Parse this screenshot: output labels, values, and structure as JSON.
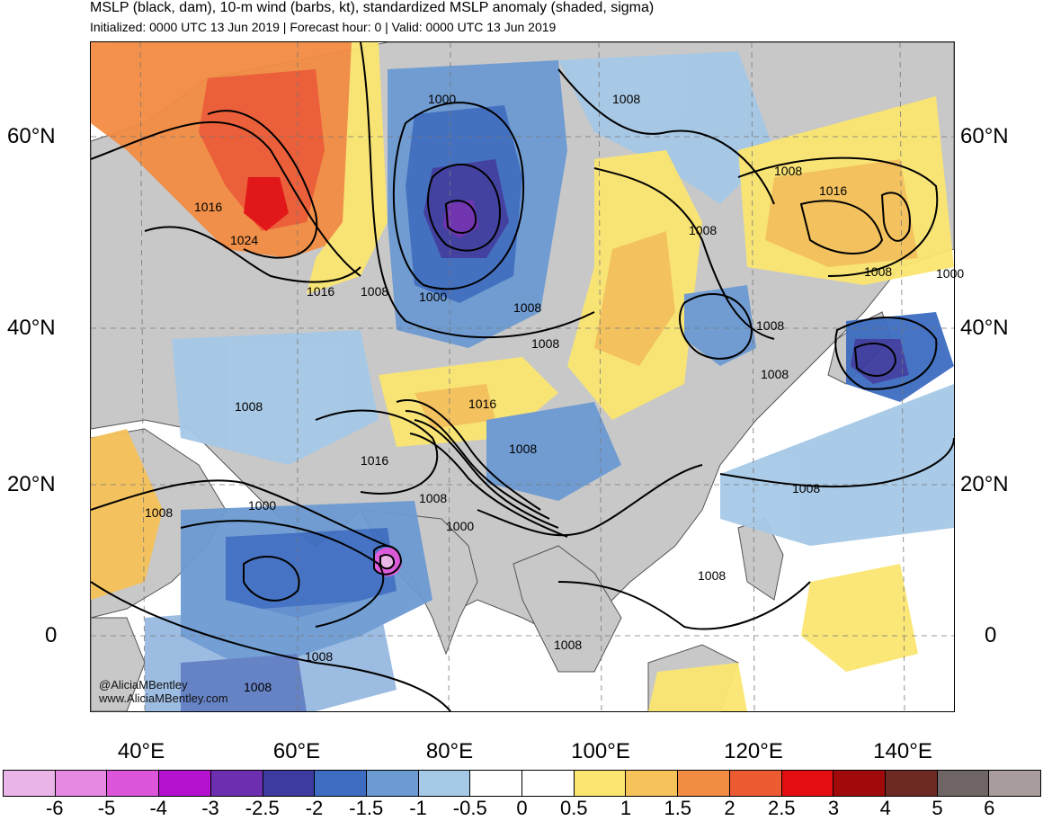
{
  "header": {
    "title": "MSLP (black, dam), 10-m wind (barbs, kt), standardized MSLP anomaly (shaded, sigma)",
    "subtitle": "Initialized: 0000 UTC 13 Jun 2019 | Forecast hour: 0 | Valid: 0000 UTC 13 Jun 2019"
  },
  "axes": {
    "lat_labels": [
      "60°N",
      "40°N",
      "20°N",
      "0"
    ],
    "lon_labels": [
      "40°E",
      "60°E",
      "80°E",
      "100°E",
      "120°E",
      "140°E"
    ]
  },
  "credit": {
    "handle": "@AliciaMBentley",
    "website": "www.AliciaMBentley.com"
  },
  "isobar_labels": [
    "1000",
    "1008",
    "1008",
    "1016",
    "1016",
    "1024",
    "1016",
    "1008",
    "1000",
    "1008",
    "1008",
    "1008",
    "1008",
    "1016",
    "1008",
    "1008",
    "1016",
    "1008",
    "1008",
    "1000",
    "1008",
    "1000",
    "1008",
    "1008",
    "1008",
    "1008",
    "1008",
    "1008",
    "1000"
  ],
  "colorbar": {
    "colors": [
      "#e9b4e8",
      "#e689e2",
      "#dc55db",
      "#b412cf",
      "#6d2eaf",
      "#3d3b9f",
      "#3d6cc0",
      "#6c9ad3",
      "#a6c9e7",
      "#ffffff",
      "#ffffff",
      "#fbe671",
      "#f6c25a",
      "#f38c43",
      "#ed5b33",
      "#e40e10",
      "#a00a0a",
      "#6e2a22",
      "#6f6565",
      "#a89c9c"
    ],
    "labels": [
      "-6",
      "-5",
      "-4",
      "-3",
      "-2.5",
      "-2",
      "-1.5",
      "-1",
      "-0.5",
      "0",
      "0.5",
      "1",
      "1.5",
      "2",
      "2.5",
      "3",
      "4",
      "5",
      "6"
    ]
  },
  "map_colors": {
    "land": "#c8c8c8",
    "coast": "#555555",
    "isobar": "#000000"
  }
}
